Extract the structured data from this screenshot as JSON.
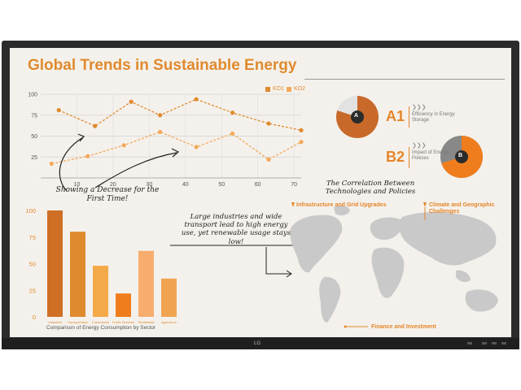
{
  "title": "Global Trends in Sustainable Energy",
  "colors": {
    "accent": "#e08a2e",
    "dark_orange": "#c8692a",
    "light_orange": "#f3a95a",
    "grey": "#888888",
    "background": "#f4f1ec"
  },
  "line_legend": {
    "series1": "KO1",
    "series2": "KO2"
  },
  "annotations": {
    "line_note": "Showing a Decrease for the First Time!",
    "industry_note": "Large industries and wide transport lead to high energy use, yet renewable usage stays low!",
    "correlation_note": "The Correlation Between Technologies and Policies"
  },
  "badges": {
    "a": {
      "code": "A1",
      "circle_label": "A",
      "description": "Efficiency in Energy Storage",
      "icon": "triple-chevron-icon",
      "fill_fraction": 0.8
    },
    "b": {
      "code": "B2",
      "circle_label": "B",
      "description": "Impact of Energy Policies",
      "icon": "triple-chevron-icon",
      "fill_fraction": 0.7
    }
  },
  "map_labels": {
    "infrastructure": "Infrastructure and Grid Upgrades",
    "climate": "Climate and Geographic Challenges",
    "finance": "Finance and Investment"
  },
  "bar_caption": "Comparison of Energy Consumption by Sector",
  "chart_data": [
    {
      "type": "line",
      "x_ticks": [
        10,
        20,
        30,
        40,
        50,
        60,
        70
      ],
      "y_ticks": [
        25,
        50,
        75,
        100
      ],
      "xlim": [
        0,
        72
      ],
      "ylim": [
        0,
        100
      ],
      "grid": true,
      "legend_position": "top-right",
      "series": [
        {
          "name": "KO1",
          "x": [
            5,
            15,
            25,
            33,
            43,
            53,
            63,
            72
          ],
          "y": [
            81,
            62,
            91,
            75,
            94,
            78,
            65,
            57
          ]
        },
        {
          "name": "KO2",
          "x": [
            3,
            13,
            23,
            33,
            43,
            53,
            63,
            72
          ],
          "y": [
            17,
            26,
            39,
            55,
            37,
            53,
            22,
            43
          ]
        }
      ]
    },
    {
      "type": "bar",
      "categories": [
        "Industrial",
        "Transportation",
        "Commercial",
        "Public Services",
        "Residential",
        "Agriculture"
      ],
      "values": [
        100,
        80,
        48,
        22,
        62,
        36
      ],
      "colors": [
        "#cf6f26",
        "#e08a2e",
        "#f4a948",
        "#f07d1d",
        "#f7ad6e",
        "#f0a452"
      ],
      "y_ticks": [
        0,
        25,
        50,
        75,
        100
      ],
      "ylim": [
        0,
        100
      ],
      "title": "Comparison of Energy Consumption by Sector"
    }
  ]
}
